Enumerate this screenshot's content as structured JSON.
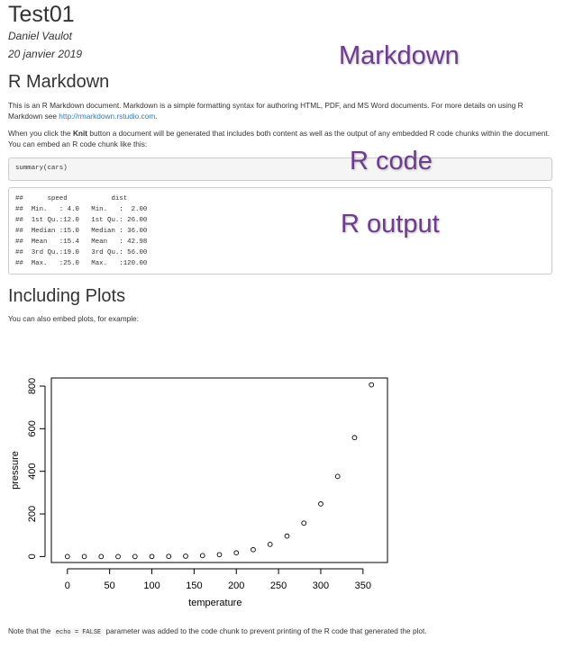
{
  "doc": {
    "title": "Test01",
    "author": "Daniel Vaulot",
    "date": "20 janvier 2019"
  },
  "annotations": {
    "markdown": "Markdown",
    "rcode": "R code",
    "routput": "R output"
  },
  "section1": {
    "heading": "R Markdown",
    "p1_text": "This is an R Markdown document. Markdown is a simple formatting syntax for authoring HTML, PDF, and MS Word documents. For more details on using R Markdown see ",
    "p1_link": "http://rmarkdown.rstudio.com",
    "p1_end": ".",
    "p2_a": "When you click the ",
    "p2_bold": "Knit",
    "p2_b": " button a document will be generated that includes both content as well as the output of any embedded R code chunks within the document. You can embed an R code chunk like this:",
    "code": "summary(cars)",
    "output": [
      "##      speed           dist       ",
      "##  Min.   : 4.0   Min.   :  2.00  ",
      "##  1st Qu.:12.0   1st Qu.: 26.00  ",
      "##  Median :15.0   Median : 36.00  ",
      "##  Mean   :15.4   Mean   : 42.98  ",
      "##  3rd Qu.:19.0   3rd Qu.: 56.00  ",
      "##  Max.   :25.0   Max.   :120.00  "
    ]
  },
  "section2": {
    "heading": "Including Plots",
    "p1": "You can also embed plots, for example:",
    "note_a": "Note that the ",
    "note_code": "echo = FALSE",
    "note_b": " parameter was added to the code chunk to prevent printing of the R code that generated the plot."
  },
  "chart_data": {
    "type": "scatter",
    "title": "",
    "xlabel": "temperature",
    "ylabel": "pressure",
    "xlim": [
      0,
      360
    ],
    "ylim": [
      0,
      806
    ],
    "x_ticks": [
      0,
      50,
      100,
      150,
      200,
      250,
      300,
      350
    ],
    "y_ticks": [
      0,
      200,
      400,
      600,
      800
    ],
    "x": [
      0,
      20,
      40,
      60,
      80,
      100,
      120,
      140,
      160,
      180,
      200,
      220,
      240,
      260,
      280,
      300,
      320,
      340,
      360
    ],
    "y": [
      0.0002,
      0.0012,
      0.006,
      0.03,
      0.09,
      0.27,
      0.75,
      1.85,
      4.2,
      8.8,
      17.3,
      32.1,
      57,
      96,
      157,
      247,
      376,
      558,
      806
    ]
  }
}
